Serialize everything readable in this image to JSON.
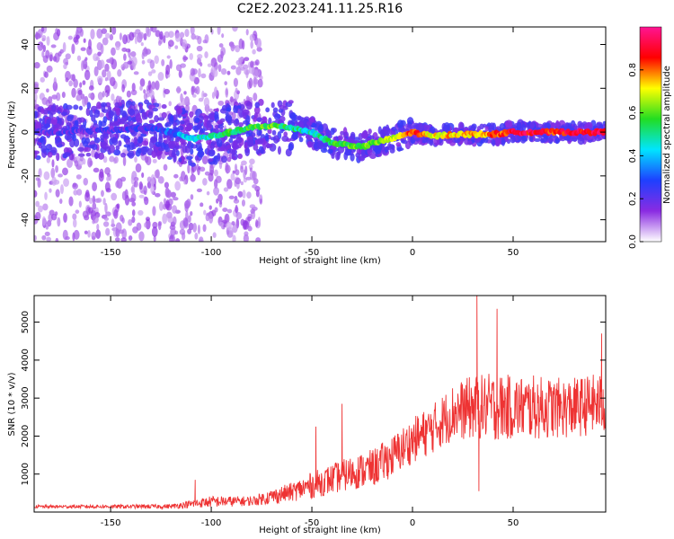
{
  "figure": {
    "title": "C2E2.2023.241.11.25.R16"
  },
  "chart_data": [
    {
      "type": "heatmap",
      "xlabel": "Height of straight line (km)",
      "ylabel": "Frequency (Hz)",
      "xlim": [
        -188,
        96
      ],
      "ylim": [
        -50,
        48
      ],
      "xticks": [
        -150,
        -100,
        -50,
        0,
        50
      ],
      "yticks": [
        -40,
        -20,
        0,
        20,
        40
      ],
      "colorbar": {
        "label": "Normalized spectral amplitude",
        "range": [
          0,
          1
        ],
        "ticks": [
          "0.0",
          "0.2",
          "0.4",
          "0.6",
          "0.8"
        ],
        "colormap": [
          "#ffffff",
          "#8a2be2",
          "#1e40ff",
          "#00e5ff",
          "#22dd22",
          "#ffff00",
          "#ff0000",
          "#ff1493"
        ]
      },
      "trace": {
        "x": [
          -188,
          -170,
          -150,
          -130,
          -120,
          -110,
          -100,
          -90,
          -80,
          -70,
          -60,
          -50,
          -40,
          -30,
          -25,
          -20,
          -10,
          0,
          10,
          20,
          30,
          40,
          50,
          60,
          70,
          80,
          90,
          96
        ],
        "freq": [
          0,
          0,
          1,
          2,
          0,
          -3,
          -2,
          0,
          2,
          3,
          2,
          0,
          -5,
          -6,
          -7,
          -5,
          -3,
          0,
          -2,
          -1,
          -1,
          -1,
          0,
          0,
          0,
          0,
          0,
          0
        ],
        "amplitude": [
          0.2,
          0.2,
          0.2,
          0.25,
          0.3,
          0.45,
          0.45,
          0.55,
          0.55,
          0.6,
          0.5,
          0.45,
          0.55,
          0.6,
          0.6,
          0.6,
          0.65,
          0.85,
          0.7,
          0.75,
          0.75,
          0.8,
          0.9,
          0.9,
          0.85,
          0.9,
          0.9,
          0.9
        ]
      },
      "scatter_extent_x": [
        -188,
        -75
      ],
      "scatter_extent_freq": [
        -50,
        48
      ]
    },
    {
      "type": "line",
      "xlabel": "Height of straight line (km)",
      "ylabel": "SNR (10 * v/v)",
      "xlim": [
        -188,
        96
      ],
      "ylim": [
        0,
        5700
      ],
      "xticks": [
        -150,
        -100,
        -50,
        0,
        50
      ],
      "yticks": [
        1000,
        2000,
        3000,
        4000,
        5000
      ],
      "color": "#ee3333",
      "envelope": {
        "x": [
          -188,
          -150,
          -120,
          -100,
          -80,
          -70,
          -60,
          -50,
          -40,
          -30,
          -20,
          -10,
          0,
          10,
          20,
          30,
          40,
          50,
          60,
          70,
          80,
          90,
          96
        ],
        "base": [
          130,
          130,
          130,
          230,
          250,
          350,
          450,
          600,
          750,
          900,
          1000,
          1300,
          1700,
          2000,
          2400,
          2500,
          2500,
          2500,
          2500,
          2500,
          2500,
          2600,
          2600
        ],
        "amp": [
          80,
          100,
          120,
          300,
          250,
          400,
          500,
          700,
          800,
          900,
          1000,
          1100,
          1200,
          1300,
          1500,
          1700,
          1800,
          1700,
          1700,
          1600,
          1600,
          1600,
          1600
        ]
      },
      "peaks": [
        {
          "x": -108,
          "y": 850
        },
        {
          "x": -48,
          "y": 2250
        },
        {
          "x": -35,
          "y": 2850
        },
        {
          "x": 32,
          "y": 5700
        },
        {
          "x": 33,
          "y": 550
        },
        {
          "x": 42,
          "y": 5350
        },
        {
          "x": 94,
          "y": 4700
        }
      ]
    }
  ]
}
